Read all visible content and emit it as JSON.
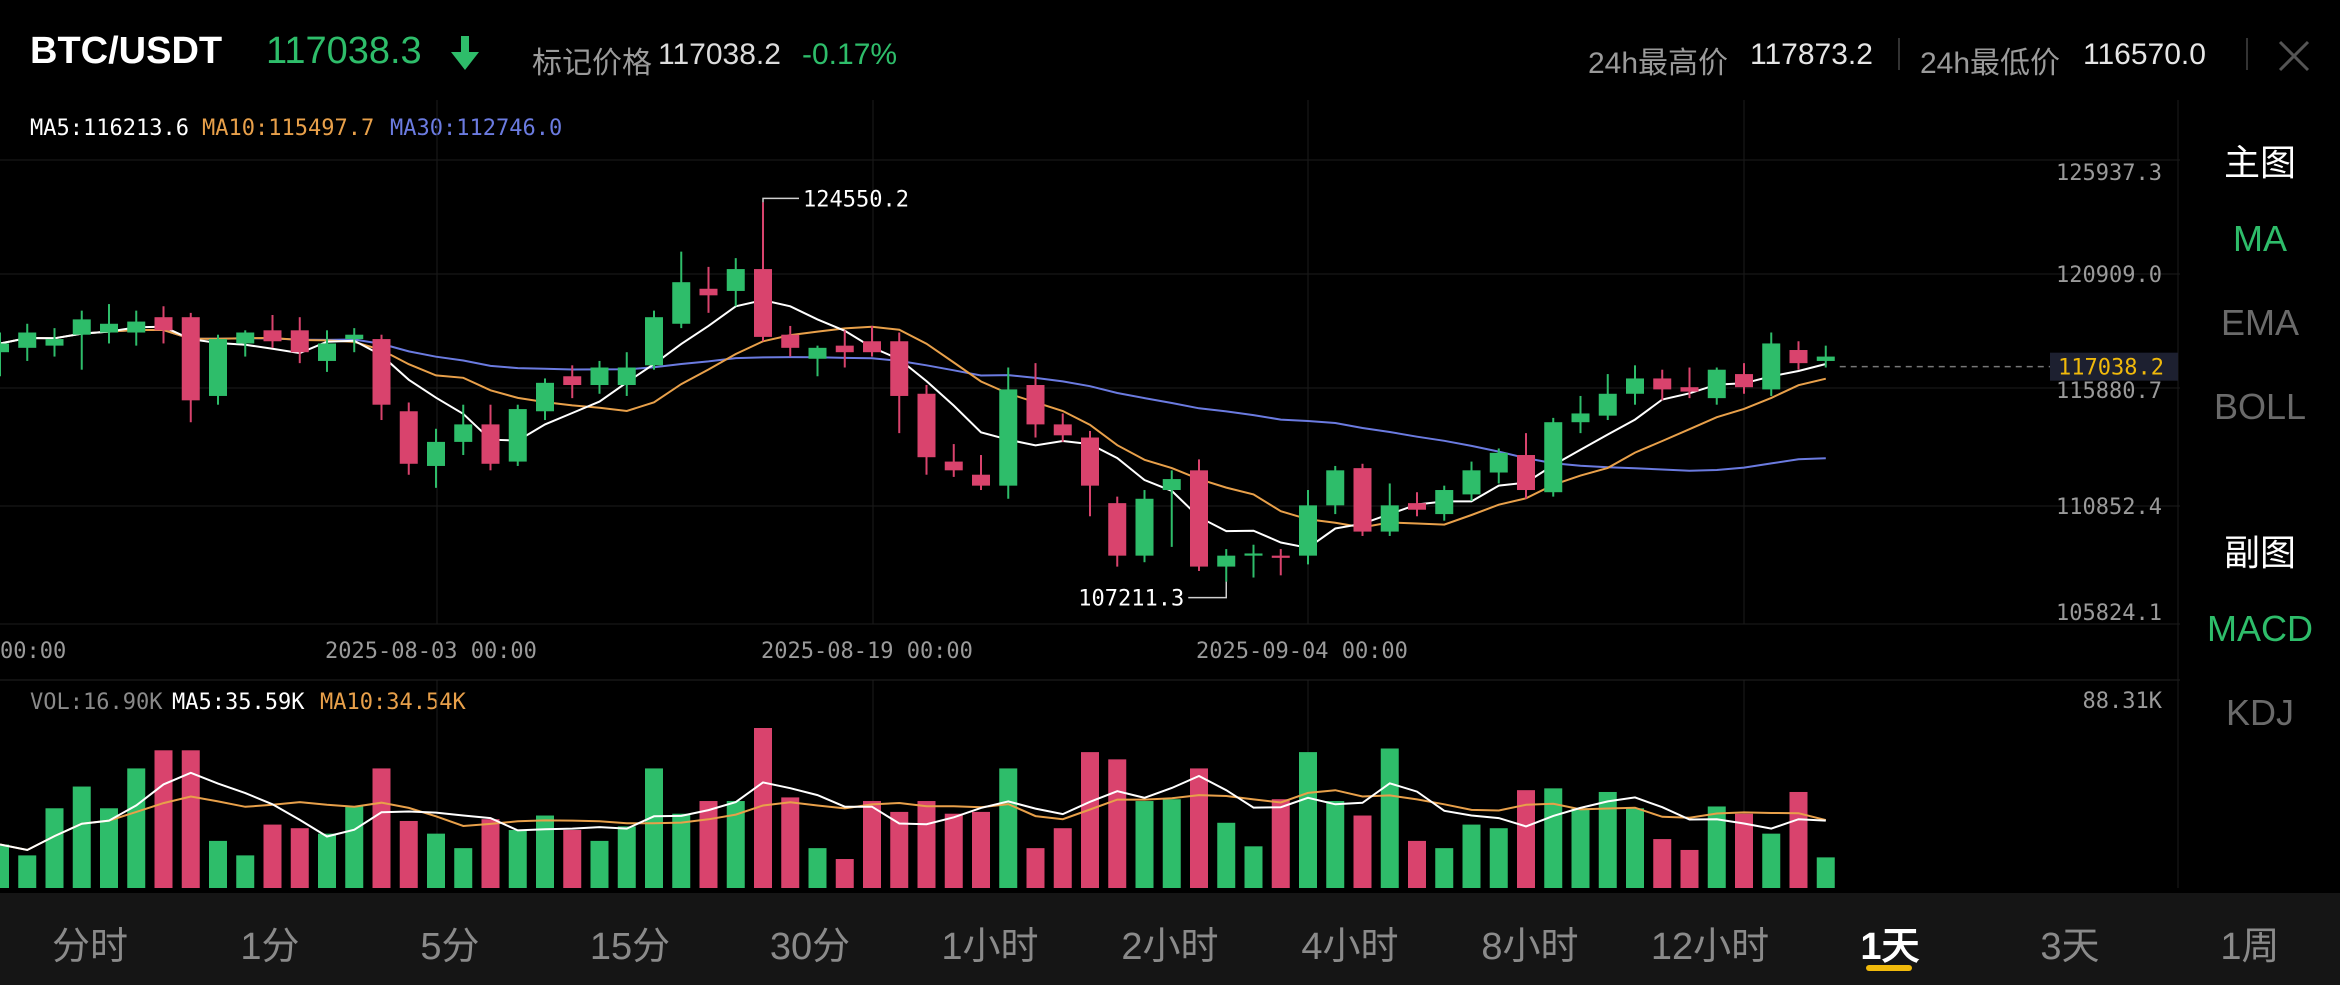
{
  "header": {
    "pair": "BTC/USDT",
    "last_price": "117038.3",
    "mark_label": "标记价格",
    "mark_price": "117038.2",
    "change": "-0.17%",
    "high_label": "24h最高价",
    "high_value": "117873.2",
    "low_label": "24h最低价",
    "low_value": "116570.0"
  },
  "colors": {
    "up": "#2ebd6a",
    "down": "#d9436d",
    "ma5": "#ffffff",
    "ma10": "#e8a04a",
    "ma30": "#6b7be0",
    "accent": "#f0b90b"
  },
  "legend": {
    "ma5": "MA5:116213.6",
    "ma10": "MA10:115497.7",
    "ma30": "MA30:112746.0",
    "vol": "VOL:16.90K",
    "vol_ma5": "MA5:35.59K",
    "vol_ma10": "MA10:34.54K"
  },
  "axis": {
    "price_ticks": [
      "125937.3",
      "120909.0",
      "115880.7",
      "110852.4",
      "105824.1"
    ],
    "current_price_tag": "117038.2",
    "date_ticks": [
      "00:00",
      "2025-08-03 00:00",
      "2025-08-19 00:00",
      "2025-09-04 00:00"
    ],
    "volume_max": "88.31K"
  },
  "annotations": {
    "high": "124550.2",
    "low": "107211.3"
  },
  "side_panel": {
    "main_title": "主图",
    "main_items": [
      "MA",
      "EMA",
      "BOLL"
    ],
    "main_active": "MA",
    "sub_title": "副图",
    "sub_items": [
      "MACD",
      "KDJ"
    ],
    "sub_active": "MACD"
  },
  "tabs": {
    "items": [
      "分时",
      "1分",
      "5分",
      "15分",
      "30分",
      "1小时",
      "2小时",
      "4小时",
      "8小时",
      "12小时",
      "1天",
      "3天",
      "1周"
    ],
    "active": "1天"
  },
  "chart_data": {
    "type": "candlestick",
    "interval": "1D",
    "price_range": [
      105824.1,
      125937.3
    ],
    "volume_max_k": 88.31,
    "candles": [
      {
        "o": 117700,
        "h": 118600,
        "l": 116600,
        "c": 118100,
        "v": 24
      },
      {
        "o": 117900,
        "h": 119000,
        "l": 117300,
        "c": 118600,
        "v": 18
      },
      {
        "o": 118000,
        "h": 118800,
        "l": 117500,
        "c": 118300,
        "v": 44
      },
      {
        "o": 118500,
        "h": 119600,
        "l": 116900,
        "c": 119200,
        "v": 56
      },
      {
        "o": 118600,
        "h": 119900,
        "l": 118100,
        "c": 119000,
        "v": 44
      },
      {
        "o": 118600,
        "h": 119600,
        "l": 118000,
        "c": 119100,
        "v": 66
      },
      {
        "o": 119300,
        "h": 119800,
        "l": 118100,
        "c": 118700,
        "v": 76
      },
      {
        "o": 119300,
        "h": 119500,
        "l": 114500,
        "c": 115500,
        "v": 76
      },
      {
        "o": 115700,
        "h": 118500,
        "l": 115300,
        "c": 118300,
        "v": 26
      },
      {
        "o": 118100,
        "h": 118700,
        "l": 117500,
        "c": 118600,
        "v": 18
      },
      {
        "o": 118700,
        "h": 119400,
        "l": 117900,
        "c": 118200,
        "v": 35
      },
      {
        "o": 118700,
        "h": 119300,
        "l": 117200,
        "c": 117700,
        "v": 33
      },
      {
        "o": 117300,
        "h": 118700,
        "l": 116800,
        "c": 118100,
        "v": 30
      },
      {
        "o": 118300,
        "h": 118800,
        "l": 117700,
        "c": 118500,
        "v": 45
      },
      {
        "o": 118300,
        "h": 118500,
        "l": 114600,
        "c": 115300,
        "v": 66
      },
      {
        "o": 115000,
        "h": 115400,
        "l": 112100,
        "c": 112600,
        "v": 37
      },
      {
        "o": 112500,
        "h": 114200,
        "l": 111500,
        "c": 113600,
        "v": 30
      },
      {
        "o": 113600,
        "h": 115300,
        "l": 113000,
        "c": 114400,
        "v": 22
      },
      {
        "o": 114400,
        "h": 115300,
        "l": 112300,
        "c": 112600,
        "v": 38
      },
      {
        "o": 112700,
        "h": 115300,
        "l": 112500,
        "c": 115100,
        "v": 32
      },
      {
        "o": 115000,
        "h": 116500,
        "l": 114600,
        "c": 116300,
        "v": 40
      },
      {
        "o": 116600,
        "h": 117100,
        "l": 115600,
        "c": 116200,
        "v": 32
      },
      {
        "o": 116200,
        "h": 117300,
        "l": 115800,
        "c": 117000,
        "v": 26
      },
      {
        "o": 116200,
        "h": 117700,
        "l": 115700,
        "c": 117000,
        "v": 34
      },
      {
        "o": 117100,
        "h": 119600,
        "l": 116900,
        "c": 119300,
        "v": 66
      },
      {
        "o": 119000,
        "h": 122300,
        "l": 118800,
        "c": 120900,
        "v": 41
      },
      {
        "o": 120600,
        "h": 121600,
        "l": 119500,
        "c": 120300,
        "v": 48
      },
      {
        "o": 120500,
        "h": 122000,
        "l": 119800,
        "c": 121500,
        "v": 48
      },
      {
        "o": 121500,
        "h": 124550.2,
        "l": 118200,
        "c": 118400,
        "v": 88.31
      },
      {
        "o": 118500,
        "h": 118900,
        "l": 117500,
        "c": 117900,
        "v": 50
      },
      {
        "o": 117400,
        "h": 118000,
        "l": 116600,
        "c": 117900,
        "v": 22
      },
      {
        "o": 118000,
        "h": 118700,
        "l": 117000,
        "c": 117700,
        "v": 16
      },
      {
        "o": 118200,
        "h": 118900,
        "l": 117500,
        "c": 117700,
        "v": 48
      },
      {
        "o": 118200,
        "h": 118600,
        "l": 114000,
        "c": 115700,
        "v": 42
      },
      {
        "o": 115800,
        "h": 116200,
        "l": 112100,
        "c": 112900,
        "v": 48
      },
      {
        "o": 112700,
        "h": 113500,
        "l": 112000,
        "c": 112300,
        "v": 41
      },
      {
        "o": 112100,
        "h": 113000,
        "l": 111400,
        "c": 111600,
        "v": 42
      },
      {
        "o": 111600,
        "h": 117000,
        "l": 111000,
        "c": 116000,
        "v": 66
      },
      {
        "o": 116200,
        "h": 117200,
        "l": 113800,
        "c": 114400,
        "v": 22
      },
      {
        "o": 114400,
        "h": 114900,
        "l": 113600,
        "c": 113900,
        "v": 33
      },
      {
        "o": 113800,
        "h": 114100,
        "l": 110200,
        "c": 111600,
        "v": 75
      },
      {
        "o": 110800,
        "h": 111100,
        "l": 107900,
        "c": 108400,
        "v": 71
      },
      {
        "o": 108400,
        "h": 111400,
        "l": 108100,
        "c": 111000,
        "v": 48
      },
      {
        "o": 111400,
        "h": 112300,
        "l": 108800,
        "c": 111900,
        "v": 49
      },
      {
        "o": 112300,
        "h": 112800,
        "l": 107700,
        "c": 107900,
        "v": 66
      },
      {
        "o": 107900,
        "h": 108700,
        "l": 107211.3,
        "c": 108400,
        "v": 36
      },
      {
        "o": 108400,
        "h": 108900,
        "l": 107400,
        "c": 108500,
        "v": 23
      },
      {
        "o": 108400,
        "h": 108700,
        "l": 107500,
        "c": 108300,
        "v": 49
      },
      {
        "o": 108400,
        "h": 111400,
        "l": 108000,
        "c": 110700,
        "v": 75
      },
      {
        "o": 110700,
        "h": 112500,
        "l": 110300,
        "c": 112300,
        "v": 48
      },
      {
        "o": 112400,
        "h": 112600,
        "l": 109300,
        "c": 109500,
        "v": 40
      },
      {
        "o": 109500,
        "h": 111700,
        "l": 109300,
        "c": 110700,
        "v": 77
      },
      {
        "o": 110800,
        "h": 111300,
        "l": 110200,
        "c": 110500,
        "v": 26
      },
      {
        "o": 110300,
        "h": 111600,
        "l": 110000,
        "c": 111400,
        "v": 22
      },
      {
        "o": 111200,
        "h": 112700,
        "l": 110900,
        "c": 112300,
        "v": 35
      },
      {
        "o": 112200,
        "h": 113300,
        "l": 111700,
        "c": 113100,
        "v": 33
      },
      {
        "o": 113000,
        "h": 114000,
        "l": 111000,
        "c": 111400,
        "v": 54
      },
      {
        "o": 111300,
        "h": 114700,
        "l": 111100,
        "c": 114500,
        "v": 55
      },
      {
        "o": 114500,
        "h": 115700,
        "l": 114000,
        "c": 114900,
        "v": 44
      },
      {
        "o": 114800,
        "h": 116700,
        "l": 114600,
        "c": 115800,
        "v": 53
      },
      {
        "o": 115800,
        "h": 117100,
        "l": 115300,
        "c": 116500,
        "v": 44
      },
      {
        "o": 116500,
        "h": 116900,
        "l": 115500,
        "c": 116000,
        "v": 27
      },
      {
        "o": 116100,
        "h": 117000,
        "l": 115600,
        "c": 115900,
        "v": 21
      },
      {
        "o": 115600,
        "h": 117000,
        "l": 115300,
        "c": 116900,
        "v": 45
      },
      {
        "o": 116700,
        "h": 117200,
        "l": 115800,
        "c": 116100,
        "v": 41
      },
      {
        "o": 116000,
        "h": 118600,
        "l": 115700,
        "c": 118100,
        "v": 30
      },
      {
        "o": 117800,
        "h": 118200,
        "l": 116900,
        "c": 117200,
        "v": 53
      },
      {
        "o": 117300,
        "h": 118000,
        "l": 117000,
        "c": 117500,
        "v": 16.9
      }
    ]
  }
}
